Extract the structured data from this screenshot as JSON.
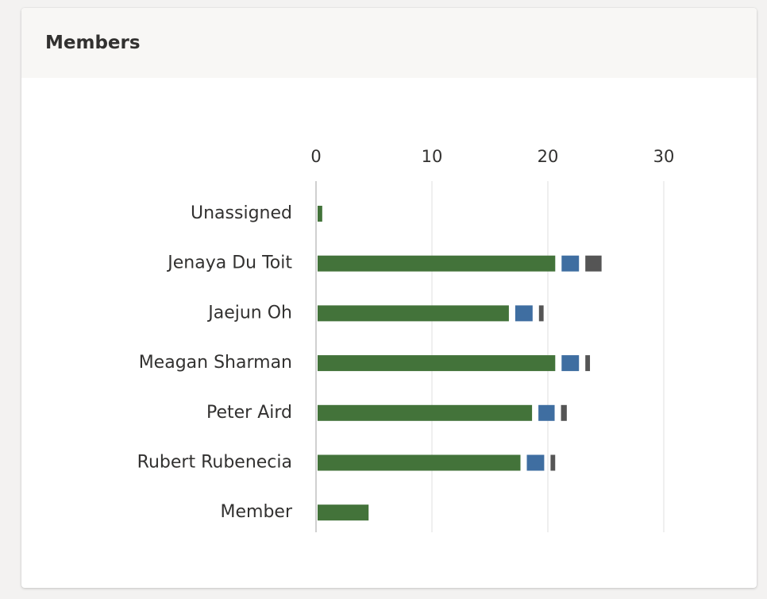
{
  "card": {
    "title": "Members"
  },
  "colors": {
    "series_1": "#43733a",
    "series_2": "#3f6ea1",
    "series_3": "#555555",
    "grid": "#eaeaea",
    "axis": "#d0d0d0"
  },
  "chart_data": {
    "type": "bar",
    "orientation": "horizontal",
    "categories": [
      "Unassigned",
      "Jenaya Du Toit",
      "Jaejun Oh",
      "Meagan Sharman",
      "Peter Aird",
      "Rubert Rubenecia",
      "Member"
    ],
    "series": [
      {
        "color": "#43733a",
        "values": [
          0.4,
          20.5,
          16.5,
          20.5,
          18.5,
          17.5,
          4.4
        ]
      },
      {
        "color": "#3f6ea1",
        "values": [
          0,
          1.5,
          1.5,
          1.5,
          1.4,
          1.5,
          0
        ]
      },
      {
        "color": "#555555",
        "values": [
          0,
          1.4,
          0.4,
          0.4,
          0.5,
          0.4,
          0
        ]
      }
    ],
    "xticks": [
      "0",
      "10",
      "20",
      "30"
    ],
    "xlim": [
      0,
      30
    ],
    "grid": true,
    "legend": "none"
  }
}
